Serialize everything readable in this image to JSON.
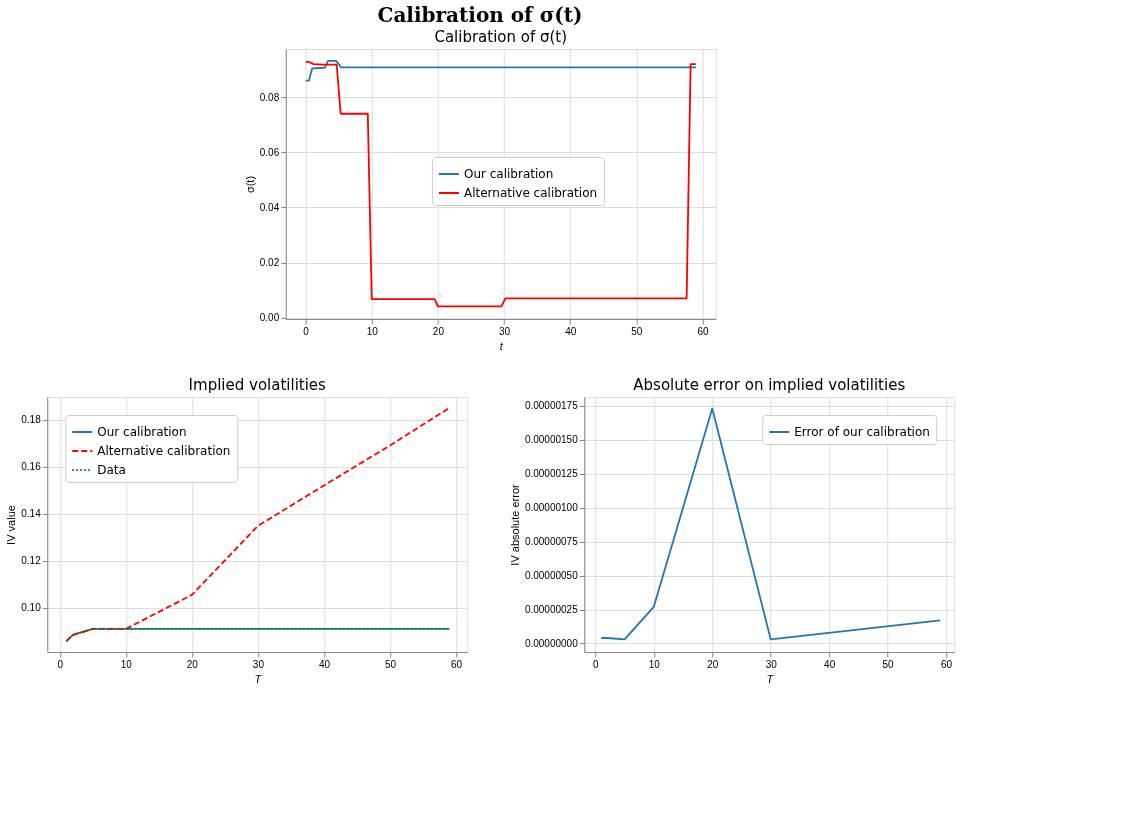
{
  "chart_data": [
    {
      "type": "line",
      "title": "Calibration of σ(t)",
      "annotations": [
        "Calibration of σ(t)"
      ],
      "xlabel": "t",
      "ylabel": "σ(t)",
      "xlim": [
        -3,
        62
      ],
      "xticks": [
        0,
        10,
        20,
        30,
        40,
        50,
        60
      ],
      "ylim": [
        -0.0005,
        0.0975
      ],
      "yticks": [
        {
          "value": 0,
          "label": "0.00"
        },
        {
          "value": 0.02,
          "label": "0.02"
        },
        {
          "value": 0.04,
          "label": "0.04"
        },
        {
          "value": 0.06,
          "label": "0.06"
        },
        {
          "value": 0.08,
          "label": "0.08"
        }
      ],
      "grid": true,
      "legend": "center",
      "line_style": "solid",
      "series": [
        {
          "name": "Our calibration",
          "color": "#1f77b4",
          "x": [
            0,
            0.5,
            1.0,
            2.9,
            3.4,
            4.6,
            5.4,
            59
          ],
          "values": [
            0.086,
            0.086,
            0.0905,
            0.0907,
            0.0932,
            0.0932,
            0.0908,
            0.0908
          ]
        },
        {
          "name": "Alternative calibration",
          "color": "#ff0000",
          "x": [
            0,
            0.5,
            1.2,
            2.5,
            4.7,
            5.3,
            9.4,
            10,
            19.5,
            20,
            29.6,
            30.2,
            57.6,
            58.2,
            59
          ],
          "values": [
            0.0928,
            0.0928,
            0.092,
            0.0918,
            0.0918,
            0.074,
            0.074,
            0.0067,
            0.0067,
            0.0041,
            0.0041,
            0.007,
            0.007,
            0.092,
            0.092
          ]
        }
      ]
    },
    {
      "type": "line",
      "title": "Implied volatilities",
      "xlabel": "T",
      "ylabel": "IV value",
      "xlim": [
        -1.9,
        61.7
      ],
      "xticks": [
        0,
        10,
        20,
        30,
        40,
        50,
        60
      ],
      "ylim": [
        0.0812,
        0.1896
      ],
      "yticks": [
        {
          "value": 0.1,
          "label": "0.10"
        },
        {
          "value": 0.12,
          "label": "0.12"
        },
        {
          "value": 0.14,
          "label": "0.14"
        },
        {
          "value": 0.16,
          "label": "0.16"
        },
        {
          "value": 0.18,
          "label": "0.18"
        }
      ],
      "grid": true,
      "legend": "top left",
      "series": [
        {
          "name": "Our calibration",
          "color": "#1f77b4",
          "line_style": "solid",
          "x": [
            1,
            2,
            5,
            10,
            20,
            30,
            59
          ],
          "values": [
            0.0858,
            0.0885,
            0.091,
            0.091,
            0.091,
            0.091,
            0.091
          ]
        },
        {
          "name": "Alternative calibration",
          "color": "#ff0000",
          "line_style": "dashed",
          "x": [
            1,
            2,
            5,
            10,
            20,
            30,
            40,
            50,
            59
          ],
          "values": [
            0.0858,
            0.0885,
            0.091,
            0.091,
            0.1055,
            0.1348,
            0.152,
            0.169,
            0.185
          ]
        },
        {
          "name": "Data",
          "color": "#008000",
          "line_style": "dotted",
          "x": [
            1,
            2,
            5,
            10,
            20,
            30,
            59
          ],
          "values": [
            0.0858,
            0.0885,
            0.091,
            0.091,
            0.091,
            0.091,
            0.091
          ]
        }
      ]
    },
    {
      "type": "line",
      "title": "Absolute error on implied volatilities",
      "xlabel": "T",
      "ylabel": "IV absolute error",
      "xlim": [
        -1.9,
        61.4
      ],
      "xticks": [
        0,
        10,
        20,
        30,
        40,
        50,
        60
      ],
      "ylim": [
        -6.3e-08,
        1.815e-06
      ],
      "yticks": [
        {
          "value": 0,
          "label": "0.00000000"
        },
        {
          "value": 2.5e-07,
          "label": "0.00000025"
        },
        {
          "value": 5e-07,
          "label": "0.00000050"
        },
        {
          "value": 7.5e-07,
          "label": "0.00000075"
        },
        {
          "value": 1e-06,
          "label": "0.00000100"
        },
        {
          "value": 1.25e-06,
          "label": "0.00000125"
        },
        {
          "value": 1.5e-06,
          "label": "0.00000150"
        },
        {
          "value": 1.75e-06,
          "label": "0.00000175"
        }
      ],
      "grid": true,
      "legend": "top right",
      "line_style": "solid",
      "series": [
        {
          "name": "Error of our calibration",
          "color": "#1f77b4",
          "x": [
            1,
            2,
            5,
            10,
            20,
            30,
            59
          ],
          "values": [
            4e-08,
            4e-08,
            3e-08,
            2.7e-07,
            1.73e-06,
            3e-08,
            1.7e-07
          ]
        }
      ]
    }
  ]
}
